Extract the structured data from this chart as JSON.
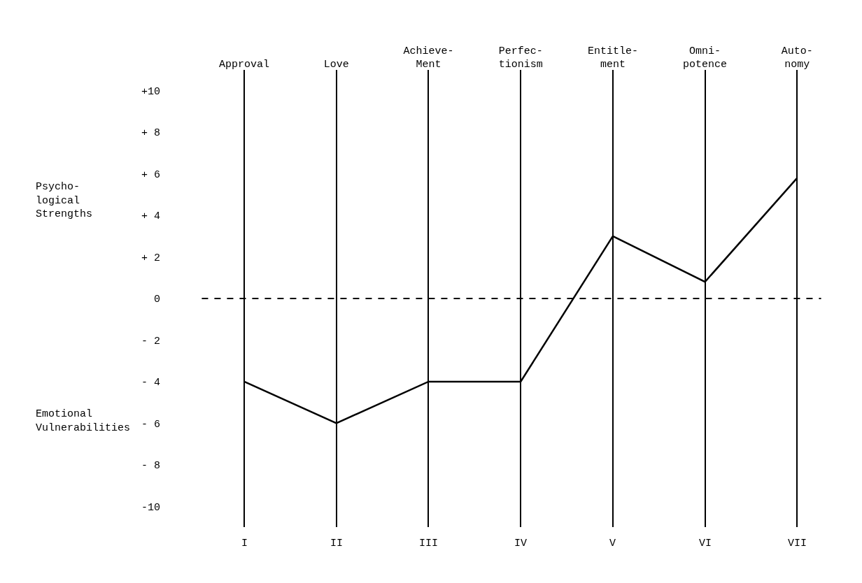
{
  "chart_data": {
    "type": "line",
    "categories": [
      "Approval",
      "Love",
      "Achieve-\nMent",
      "Perfec-\ntionism",
      "Entitle-\nment",
      "Omni-\npotence",
      "Auto-\nnomy"
    ],
    "series": [
      {
        "color": "#000000",
        "values": [
          -4,
          -6,
          -4,
          -4,
          3,
          0.8,
          5.8
        ]
      }
    ],
    "ylim": [
      -11,
      11
    ],
    "yticks": [
      {
        "value": 10,
        "label": "+10"
      },
      {
        "value": 8,
        "label": "+ 8"
      },
      {
        "value": 6,
        "label": "+ 6"
      },
      {
        "value": 4,
        "label": "+ 4"
      },
      {
        "value": 2,
        "label": "+ 2"
      },
      0,
      {
        "value": -2,
        "label": "- 2"
      },
      {
        "value": -4,
        "label": "- 4"
      },
      {
        "value": -6,
        "label": "- 6"
      },
      {
        "value": -8,
        "label": "- 8"
      },
      {
        "value": -10,
        "label": "-10"
      }
    ],
    "ref_lines": [
      {
        "axis": "y",
        "value": 0,
        "line_style": "dashed",
        "color": "#000000"
      }
    ],
    "annotations": [
      "Psycho-\nlogical\nStrengths",
      "Emotional\nVulnerabilities",
      "I",
      "II",
      "III",
      "IV",
      "V",
      "VI",
      "VII"
    ],
    "grid": "x",
    "marker": "none",
    "line_style": "solid"
  }
}
